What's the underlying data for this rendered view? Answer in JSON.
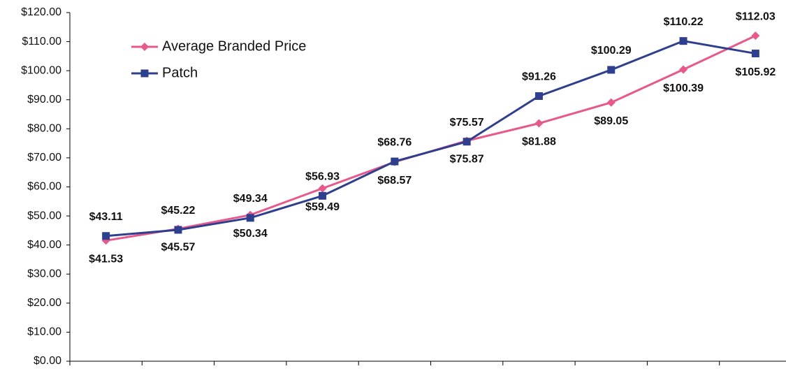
{
  "chart_data": {
    "type": "line",
    "categories": [
      null,
      null,
      null,
      null,
      null,
      null,
      null,
      null,
      null,
      null
    ],
    "series": [
      {
        "name": "Average Branded Price",
        "color": "#e8588a",
        "marker": "diamond",
        "values": [
          41.53,
          45.57,
          50.34,
          59.49,
          68.57,
          75.87,
          81.88,
          89.05,
          100.39,
          112.03
        ],
        "value_labels": [
          "$41.53",
          "$45.57",
          "$50.34",
          "$59.49",
          "$68.57",
          "$75.87",
          "$81.88",
          "$89.05",
          "$100.39",
          "$112.03"
        ]
      },
      {
        "name": "Patch",
        "color": "#2e3f8f",
        "marker": "square",
        "values": [
          43.11,
          45.22,
          49.34,
          56.93,
          68.76,
          75.57,
          91.26,
          100.29,
          110.22,
          105.92
        ],
        "value_labels": [
          "$43.11",
          "$45.22",
          "$49.34",
          "$56.93",
          "$68.76",
          "$75.57",
          "$91.26",
          "$100.29",
          "$110.22",
          "$105.92"
        ]
      }
    ],
    "ylim": [
      0,
      120
    ],
    "yticks": [
      {
        "value": 0,
        "label": "$0.00"
      },
      {
        "value": 10,
        "label": "$10.00"
      },
      {
        "value": 20,
        "label": "$20.00"
      },
      {
        "value": 30,
        "label": "$30.00"
      },
      {
        "value": 40,
        "label": "$40.00"
      },
      {
        "value": 50,
        "label": "$50.00"
      },
      {
        "value": 60,
        "label": "$60.00"
      },
      {
        "value": 70,
        "label": "$70.00"
      },
      {
        "value": 80,
        "label": "$80.00"
      },
      {
        "value": 90,
        "label": "$90.00"
      },
      {
        "value": 100,
        "label": "$100.00"
      },
      {
        "value": 110,
        "label": "$110.00"
      },
      {
        "value": 120,
        "label": "$120.00"
      }
    ],
    "grid": false,
    "legend": "upper left"
  }
}
